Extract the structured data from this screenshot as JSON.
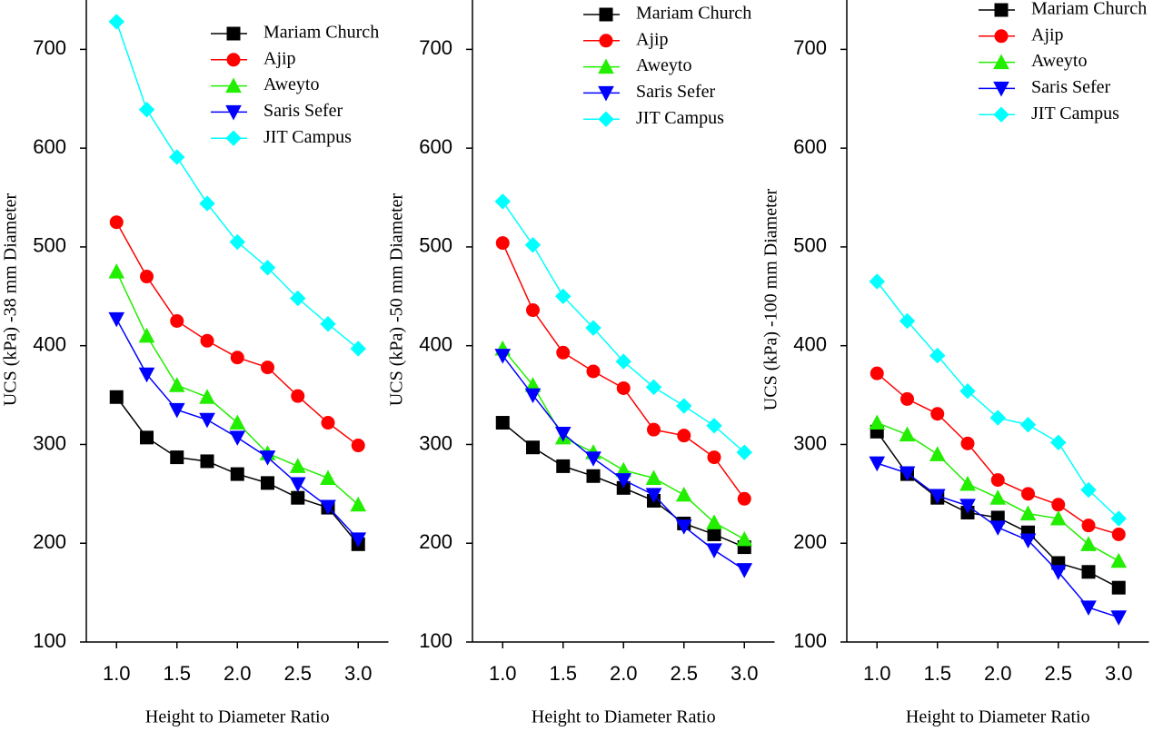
{
  "chart_data": [
    {
      "type": "line",
      "ylabel": "UCS (kPa) -38 mm Diameter",
      "xlabel": "Height to Diameter Ratio",
      "x": [
        1.0,
        1.25,
        1.5,
        1.75,
        2.0,
        2.25,
        2.5,
        2.75,
        3.0
      ],
      "xlim": [
        0.75,
        3.25
      ],
      "ylim": [
        100,
        750
      ],
      "xticks": [
        {
          "value": 1.0,
          "label": "1.0"
        },
        {
          "value": 1.5,
          "label": "1.5"
        },
        {
          "value": 2.0,
          "label": "2.0"
        },
        {
          "value": 2.5,
          "label": "2.5"
        },
        {
          "value": 3.0,
          "label": "3.0"
        }
      ],
      "yticks": [
        100,
        200,
        300,
        400,
        500,
        600,
        700
      ],
      "legend": "upper right",
      "series": [
        {
          "name": "Mariam Church",
          "color": "#000000",
          "marker": "square",
          "values": [
            348,
            307,
            287,
            283,
            270,
            261,
            246,
            236,
            199
          ]
        },
        {
          "name": "Ajip",
          "color": "#ff0000",
          "marker": "circle",
          "values": [
            525,
            470,
            425,
            405,
            388,
            378,
            349,
            322,
            299
          ]
        },
        {
          "name": "Aweyto",
          "color": "#22ee00",
          "marker": "triangle-up",
          "values": [
            475,
            410,
            360,
            348,
            322,
            291,
            278,
            266,
            239
          ]
        },
        {
          "name": "Saris Sefer",
          "color": "#0000ff",
          "marker": "triangle-down",
          "values": [
            427,
            371,
            335,
            325,
            307,
            287,
            260,
            237,
            204
          ]
        },
        {
          "name": "JIT Campus",
          "color": "#00ffff",
          "marker": "diamond",
          "values": [
            728,
            639,
            591,
            544,
            505,
            479,
            448,
            422,
            397
          ]
        }
      ]
    },
    {
      "type": "line",
      "ylabel": "UCS (kPa) -50 mm Diameter",
      "xlabel": "Height to Diameter Ratio",
      "x": [
        1.0,
        1.25,
        1.5,
        1.75,
        2.0,
        2.25,
        2.5,
        2.75,
        3.0
      ],
      "xlim": [
        0.75,
        3.25
      ],
      "ylim": [
        100,
        750
      ],
      "xticks": [
        {
          "value": 1.0,
          "label": "1.0"
        },
        {
          "value": 1.5,
          "label": "1.5"
        },
        {
          "value": 2.0,
          "label": "2.0"
        },
        {
          "value": 2.5,
          "label": "2.5"
        },
        {
          "value": 3.0,
          "label": "3.0"
        }
      ],
      "yticks": [
        100,
        200,
        300,
        400,
        500,
        600,
        700
      ],
      "legend": "upper right",
      "series": [
        {
          "name": "Mariam Church",
          "color": "#000000",
          "marker": "square",
          "values": [
            322,
            297,
            278,
            268,
            256,
            243,
            220,
            209,
            196
          ]
        },
        {
          "name": "Ajip",
          "color": "#ff0000",
          "marker": "circle",
          "values": [
            504,
            436,
            393,
            374,
            357,
            315,
            309,
            287,
            245
          ]
        },
        {
          "name": "Aweyto",
          "color": "#22ee00",
          "marker": "triangle-up",
          "values": [
            397,
            360,
            307,
            292,
            274,
            266,
            249,
            221,
            204
          ]
        },
        {
          "name": "Saris Sefer",
          "color": "#0000ff",
          "marker": "triangle-down",
          "values": [
            390,
            350,
            311,
            286,
            264,
            249,
            217,
            193,
            173
          ]
        },
        {
          "name": "JIT Campus",
          "color": "#00ffff",
          "marker": "diamond",
          "values": [
            546,
            502,
            450,
            418,
            384,
            358,
            339,
            319,
            292
          ]
        }
      ]
    },
    {
      "type": "line",
      "ylabel": "UCS (kPa) -100 mm Diameter",
      "xlabel": "Height to Diameter Ratio",
      "x": [
        1.0,
        1.25,
        1.5,
        1.75,
        2.0,
        2.25,
        2.5,
        2.75,
        3.0
      ],
      "xlim": [
        0.75,
        3.25
      ],
      "ylim": [
        100,
        750
      ],
      "xticks": [
        {
          "value": 1.0,
          "label": "1.0"
        },
        {
          "value": 1.5,
          "label": "1.5"
        },
        {
          "value": 2.0,
          "label": "2.0"
        },
        {
          "value": 2.5,
          "label": "2.5"
        },
        {
          "value": 3.0,
          "label": "3.0"
        }
      ],
      "yticks": [
        100,
        200,
        300,
        400,
        500,
        600,
        700
      ],
      "legend": "upper right",
      "series": [
        {
          "name": "Mariam Church",
          "color": "#000000",
          "marker": "square",
          "values": [
            313,
            270,
            246,
            231,
            226,
            211,
            180,
            171,
            155
          ]
        },
        {
          "name": "Ajip",
          "color": "#ff0000",
          "marker": "circle",
          "values": [
            372,
            346,
            331,
            301,
            264,
            250,
            239,
            218,
            209
          ]
        },
        {
          "name": "Aweyto",
          "color": "#22ee00",
          "marker": "triangle-up",
          "values": [
            322,
            310,
            290,
            260,
            246,
            230,
            225,
            199,
            182
          ]
        },
        {
          "name": "Saris Sefer",
          "color": "#0000ff",
          "marker": "triangle-down",
          "values": [
            281,
            271,
            248,
            238,
            216,
            203,
            171,
            135,
            125
          ]
        },
        {
          "name": "JIT Campus",
          "color": "#00ffff",
          "marker": "diamond",
          "values": [
            465,
            425,
            390,
            354,
            327,
            320,
            302,
            254,
            225
          ]
        }
      ]
    }
  ]
}
